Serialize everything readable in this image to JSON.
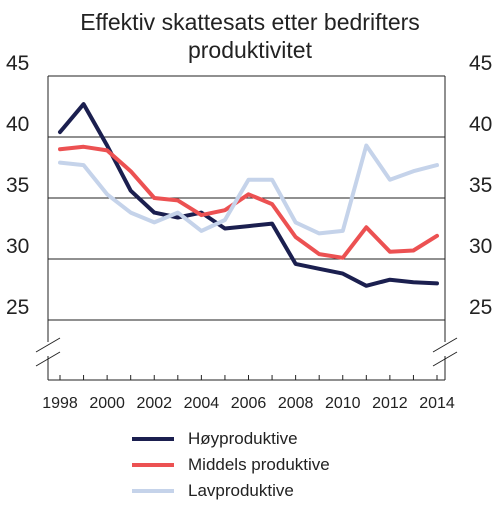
{
  "chart_data": {
    "type": "line",
    "title_lines": [
      "Effektiv skattesats etter bedrifters",
      "produktivitet"
    ],
    "xlabel": "",
    "ylabel": "",
    "x": [
      1998,
      1999,
      2000,
      2001,
      2002,
      2003,
      2004,
      2005,
      2006,
      2007,
      2008,
      2009,
      2010,
      2011,
      2012,
      2013,
      2014
    ],
    "x_tick_labels": [
      "1998",
      "2000",
      "2002",
      "2004",
      "2006",
      "2008",
      "2010",
      "2012",
      "2014"
    ],
    "y_ticks": [
      25,
      30,
      35,
      40,
      45
    ],
    "y_tick_labels": [
      "25",
      "30",
      "35",
      "40",
      "45"
    ],
    "ylim": [
      25,
      45
    ],
    "axis_break": true,
    "dual_y_axis_labels": true,
    "grid": "horizontal",
    "legend_position": "bottom",
    "series": [
      {
        "name": "Høyproduktive",
        "color": "#1b1f4f",
        "values": [
          40.4,
          42.7,
          39.3,
          35.6,
          33.8,
          33.4,
          33.8,
          32.5,
          32.7,
          32.9,
          29.6,
          29.2,
          28.8,
          27.8,
          28.3,
          28.1,
          28.0
        ]
      },
      {
        "name": "Middels produktive",
        "color": "#ec5152",
        "values": [
          39.0,
          39.2,
          38.9,
          37.2,
          35.0,
          34.8,
          33.6,
          34.0,
          35.3,
          34.5,
          31.8,
          30.4,
          30.1,
          32.6,
          30.6,
          30.7,
          31.9
        ]
      },
      {
        "name": "Lavproduktive",
        "color": "#c5d3ea",
        "values": [
          37.9,
          37.7,
          35.3,
          33.8,
          33.0,
          33.8,
          32.3,
          33.2,
          36.5,
          36.5,
          33.0,
          32.1,
          32.3,
          39.3,
          36.5,
          37.2,
          37.7
        ]
      }
    ]
  }
}
